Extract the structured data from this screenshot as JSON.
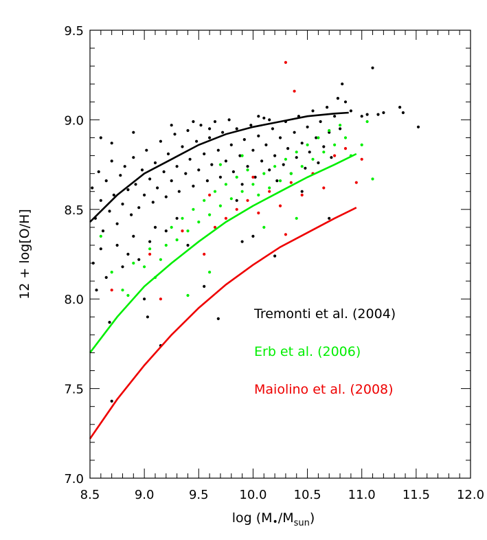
{
  "chart_data": {
    "type": "scatter",
    "title": "",
    "xlabel": "log (M•/Msun)",
    "xlabel_parts": {
      "prefix": "log (M",
      "star": "•",
      "mid": "/M",
      "sub": "sun",
      "suffix": ")"
    },
    "ylabel": "12 + log[O/H]",
    "xlim": [
      8.5,
      12.0
    ],
    "ylim": [
      7.0,
      9.5
    ],
    "x_ticks": [
      "8.5",
      "9.0",
      "9.5",
      "10.0",
      "10.5",
      "11.0",
      "11.5",
      "12.0"
    ],
    "y_ticks": [
      "7.0",
      "7.5",
      "8.0",
      "8.5",
      "9.0",
      "9.5"
    ],
    "grid": false,
    "legend_position": "inside lower-right",
    "series": [
      {
        "name": "Tremonti et al. (2004)",
        "color": "#000000",
        "fit_curve": [
          [
            8.5,
            8.43
          ],
          [
            8.75,
            8.58
          ],
          [
            9.0,
            8.7
          ],
          [
            9.25,
            8.78
          ],
          [
            9.5,
            8.86
          ],
          [
            9.75,
            8.92
          ],
          [
            10.0,
            8.96
          ],
          [
            10.25,
            8.99
          ],
          [
            10.5,
            9.02
          ],
          [
            10.75,
            9.035
          ],
          [
            10.88,
            9.04
          ]
        ],
        "points": [
          [
            8.52,
            8.62
          ],
          [
            8.55,
            8.45
          ],
          [
            8.58,
            8.71
          ],
          [
            8.6,
            8.55
          ],
          [
            8.62,
            8.38
          ],
          [
            8.65,
            8.66
          ],
          [
            8.68,
            8.49
          ],
          [
            8.7,
            8.77
          ],
          [
            8.72,
            8.58
          ],
          [
            8.75,
            8.42
          ],
          [
            8.78,
            8.69
          ],
          [
            8.8,
            8.53
          ],
          [
            8.82,
            8.74
          ],
          [
            8.85,
            8.61
          ],
          [
            8.88,
            8.47
          ],
          [
            8.9,
            8.79
          ],
          [
            8.92,
            8.64
          ],
          [
            8.95,
            8.51
          ],
          [
            8.98,
            8.72
          ],
          [
            9.0,
            8.58
          ],
          [
            9.02,
            8.83
          ],
          [
            9.05,
            8.67
          ],
          [
            9.08,
            8.54
          ],
          [
            9.1,
            8.76
          ],
          [
            9.12,
            8.62
          ],
          [
            9.15,
            8.88
          ],
          [
            9.18,
            8.71
          ],
          [
            9.2,
            8.57
          ],
          [
            9.22,
            8.81
          ],
          [
            9.25,
            8.66
          ],
          [
            9.28,
            8.92
          ],
          [
            9.3,
            8.74
          ],
          [
            9.32,
            8.6
          ],
          [
            9.35,
            8.85
          ],
          [
            9.38,
            8.7
          ],
          [
            9.4,
            8.94
          ],
          [
            9.42,
            8.78
          ],
          [
            9.45,
            8.63
          ],
          [
            9.48,
            8.88
          ],
          [
            9.5,
            8.72
          ],
          [
            9.52,
            8.97
          ],
          [
            9.55,
            8.81
          ],
          [
            9.58,
            8.66
          ],
          [
            9.6,
            8.9
          ],
          [
            9.62,
            8.75
          ],
          [
            9.65,
            8.99
          ],
          [
            9.68,
            8.83
          ],
          [
            9.7,
            8.68
          ],
          [
            9.72,
            8.93
          ],
          [
            9.75,
            8.77
          ],
          [
            9.78,
            9.0
          ],
          [
            9.8,
            8.86
          ],
          [
            9.82,
            8.71
          ],
          [
            9.85,
            8.95
          ],
          [
            9.88,
            8.8
          ],
          [
            9.9,
            8.64
          ],
          [
            9.92,
            8.89
          ],
          [
            9.95,
            8.74
          ],
          [
            9.98,
            8.97
          ],
          [
            10.0,
            8.83
          ],
          [
            10.02,
            8.68
          ],
          [
            10.05,
            8.91
          ],
          [
            10.08,
            8.77
          ],
          [
            10.1,
            9.01
          ],
          [
            10.12,
            8.86
          ],
          [
            10.15,
            8.72
          ],
          [
            10.18,
            8.95
          ],
          [
            10.2,
            8.8
          ],
          [
            10.22,
            8.66
          ],
          [
            10.25,
            8.9
          ],
          [
            10.28,
            8.75
          ],
          [
            10.3,
            8.99
          ],
          [
            10.32,
            8.84
          ],
          [
            10.35,
            8.7
          ],
          [
            10.38,
            8.93
          ],
          [
            10.4,
            8.79
          ],
          [
            10.42,
            9.02
          ],
          [
            10.45,
            8.87
          ],
          [
            10.48,
            8.73
          ],
          [
            10.5,
            8.96
          ],
          [
            10.52,
            8.82
          ],
          [
            10.55,
            9.05
          ],
          [
            10.58,
            8.9
          ],
          [
            10.6,
            8.76
          ],
          [
            10.62,
            8.99
          ],
          [
            10.65,
            8.85
          ],
          [
            10.68,
            9.07
          ],
          [
            10.7,
            8.93
          ],
          [
            10.72,
            8.79
          ],
          [
            10.75,
            9.02
          ],
          [
            10.78,
            9.12
          ],
          [
            10.8,
            8.95
          ],
          [
            10.82,
            9.2
          ],
          [
            10.85,
            9.1
          ],
          [
            10.9,
            9.05
          ],
          [
            11.0,
            9.02
          ],
          [
            11.05,
            9.03
          ],
          [
            11.1,
            9.29
          ],
          [
            11.15,
            9.03
          ],
          [
            11.2,
            9.04
          ],
          [
            11.35,
            9.07
          ],
          [
            11.38,
            9.04
          ],
          [
            11.52,
            8.96
          ],
          [
            8.53,
            8.2
          ],
          [
            8.56,
            8.05
          ],
          [
            8.6,
            8.28
          ],
          [
            8.65,
            8.12
          ],
          [
            8.68,
            7.87
          ],
          [
            8.7,
            7.43
          ],
          [
            8.75,
            8.3
          ],
          [
            8.8,
            8.18
          ],
          [
            8.85,
            8.25
          ],
          [
            8.9,
            8.35
          ],
          [
            8.95,
            8.22
          ],
          [
            9.0,
            8.0
          ],
          [
            9.03,
            7.9
          ],
          [
            9.05,
            8.32
          ],
          [
            9.1,
            8.4
          ],
          [
            9.15,
            7.74
          ],
          [
            9.2,
            8.38
          ],
          [
            9.4,
            8.3
          ],
          [
            9.55,
            8.07
          ],
          [
            9.68,
            7.89
          ],
          [
            9.9,
            8.32
          ],
          [
            10.0,
            8.35
          ],
          [
            10.2,
            8.24
          ],
          [
            10.7,
            8.45
          ],
          [
            10.45,
            8.6
          ],
          [
            9.85,
            8.55
          ],
          [
            9.3,
            8.45
          ],
          [
            8.9,
            8.93
          ],
          [
            8.7,
            8.87
          ],
          [
            8.6,
            8.9
          ],
          [
            9.25,
            8.97
          ],
          [
            9.45,
            8.99
          ],
          [
            9.6,
            8.95
          ],
          [
            10.05,
            9.02
          ],
          [
            10.15,
            9.0
          ]
        ]
      },
      {
        "name": "Erb et al. (2006)",
        "color": "#00ee00",
        "fit_curve": [
          [
            8.5,
            7.7
          ],
          [
            8.75,
            7.9
          ],
          [
            9.0,
            8.07
          ],
          [
            9.25,
            8.2
          ],
          [
            9.5,
            8.32
          ],
          [
            9.75,
            8.43
          ],
          [
            10.0,
            8.52
          ],
          [
            10.25,
            8.6
          ],
          [
            10.5,
            8.68
          ],
          [
            10.75,
            8.75
          ],
          [
            10.95,
            8.81
          ]
        ],
        "points": [
          [
            8.6,
            8.35
          ],
          [
            8.7,
            8.15
          ],
          [
            8.8,
            8.05
          ],
          [
            8.85,
            8.02
          ],
          [
            8.9,
            8.2
          ],
          [
            9.0,
            8.18
          ],
          [
            9.05,
            8.28
          ],
          [
            9.1,
            8.12
          ],
          [
            9.15,
            8.22
          ],
          [
            9.2,
            8.3
          ],
          [
            9.25,
            8.4
          ],
          [
            9.3,
            8.33
          ],
          [
            9.35,
            8.45
          ],
          [
            9.4,
            8.38
          ],
          [
            9.45,
            8.5
          ],
          [
            9.5,
            8.43
          ],
          [
            9.55,
            8.55
          ],
          [
            9.6,
            8.47
          ],
          [
            9.65,
            8.6
          ],
          [
            9.7,
            8.52
          ],
          [
            9.75,
            8.64
          ],
          [
            9.8,
            8.56
          ],
          [
            9.85,
            8.68
          ],
          [
            9.9,
            8.6
          ],
          [
            9.95,
            8.72
          ],
          [
            10.0,
            8.64
          ],
          [
            10.05,
            8.58
          ],
          [
            10.1,
            8.7
          ],
          [
            10.15,
            8.62
          ],
          [
            10.2,
            8.74
          ],
          [
            10.25,
            8.66
          ],
          [
            10.3,
            8.78
          ],
          [
            10.35,
            8.7
          ],
          [
            10.4,
            8.82
          ],
          [
            10.45,
            8.74
          ],
          [
            10.5,
            8.86
          ],
          [
            10.55,
            8.78
          ],
          [
            10.6,
            8.9
          ],
          [
            10.65,
            8.82
          ],
          [
            10.7,
            8.94
          ],
          [
            10.75,
            8.86
          ],
          [
            10.8,
            8.97
          ],
          [
            10.85,
            8.9
          ],
          [
            10.9,
            8.8
          ],
          [
            11.0,
            8.86
          ],
          [
            11.05,
            8.99
          ],
          [
            11.1,
            8.67
          ],
          [
            9.4,
            8.02
          ],
          [
            9.6,
            8.15
          ],
          [
            10.1,
            8.4
          ],
          [
            10.4,
            8.45
          ],
          [
            9.9,
            8.8
          ],
          [
            9.7,
            8.75
          ]
        ]
      },
      {
        "name": "Maiolino et al. (2008)",
        "color": "#ee0000",
        "fit_curve": [
          [
            8.5,
            7.22
          ],
          [
            8.75,
            7.44
          ],
          [
            9.0,
            7.63
          ],
          [
            9.25,
            7.8
          ],
          [
            9.5,
            7.95
          ],
          [
            9.75,
            8.08
          ],
          [
            10.0,
            8.19
          ],
          [
            10.25,
            8.29
          ],
          [
            10.5,
            8.37
          ],
          [
            10.75,
            8.45
          ],
          [
            10.95,
            8.51
          ]
        ],
        "points": [
          [
            10.3,
            9.32
          ],
          [
            10.38,
            9.16
          ],
          [
            8.7,
            8.05
          ],
          [
            9.05,
            8.25
          ],
          [
            9.15,
            8.0
          ],
          [
            9.35,
            8.38
          ],
          [
            9.55,
            8.25
          ],
          [
            9.65,
            8.4
          ],
          [
            9.75,
            8.45
          ],
          [
            9.85,
            8.5
          ],
          [
            9.95,
            8.55
          ],
          [
            10.05,
            8.48
          ],
          [
            10.15,
            8.6
          ],
          [
            10.25,
            8.52
          ],
          [
            10.35,
            8.65
          ],
          [
            10.45,
            8.58
          ],
          [
            10.55,
            8.7
          ],
          [
            10.65,
            8.62
          ],
          [
            10.75,
            8.8
          ],
          [
            10.85,
            8.84
          ],
          [
            10.95,
            8.65
          ],
          [
            11.0,
            8.78
          ],
          [
            10.0,
            8.68
          ],
          [
            10.3,
            8.36
          ],
          [
            9.6,
            8.58
          ]
        ]
      }
    ]
  }
}
